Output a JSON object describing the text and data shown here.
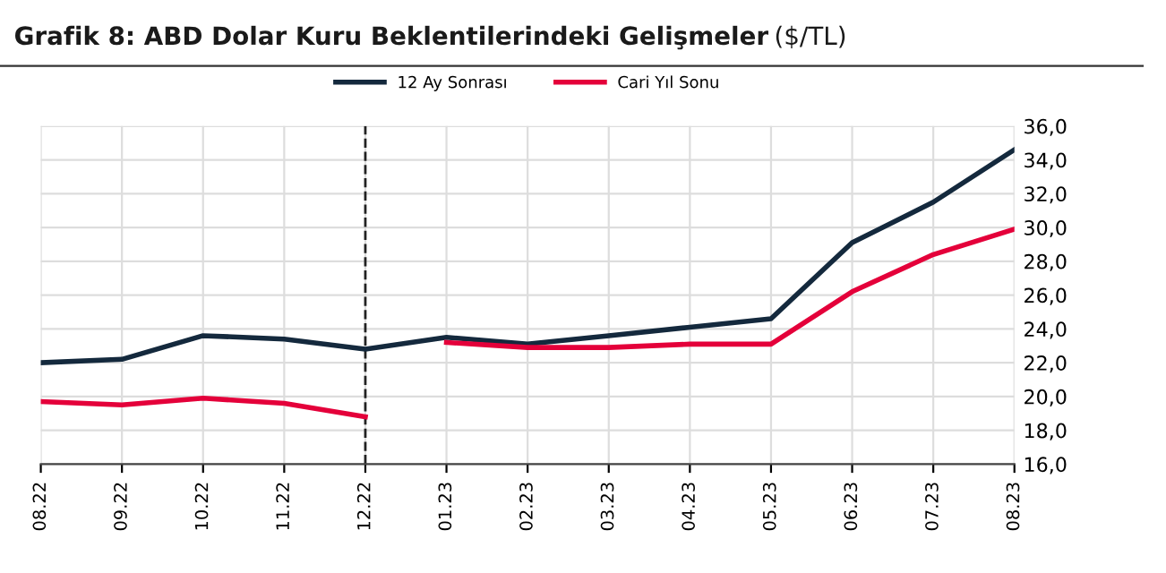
{
  "chart_data": {
    "type": "line",
    "title": "Grafik 8: ABD Dolar Kuru Beklentilerindeki Gelişmeler",
    "subtitle": "($/TL)",
    "categories": [
      "08.22",
      "09.22",
      "10.22",
      "11.22",
      "12.22",
      "01.23",
      "02.23",
      "03.23",
      "04.23",
      "05.23",
      "06.23",
      "07.23",
      "08.23"
    ],
    "series": [
      {
        "name": "12 Ay Sonrası",
        "color": "#14293d",
        "values": [
          22.0,
          22.2,
          23.6,
          23.4,
          22.8,
          23.5,
          23.1,
          23.6,
          24.1,
          24.6,
          29.1,
          31.5,
          34.6
        ]
      },
      {
        "name": "Cari Yıl Sonu",
        "color": "#e4003a",
        "values": [
          19.7,
          19.5,
          19.9,
          19.6,
          18.8,
          null,
          null,
          null,
          null,
          null,
          null,
          null,
          null
        ]
      },
      {
        "color": "#e4003a",
        "values": [
          null,
          null,
          null,
          null,
          null,
          23.2,
          22.9,
          22.9,
          23.1,
          23.1,
          26.2,
          28.4,
          29.9
        ]
      }
    ],
    "ylim": [
      16,
      36
    ],
    "yticks": [
      {
        "value": 16,
        "label": "16,0"
      },
      {
        "value": 18,
        "label": "18,0"
      },
      {
        "value": 20,
        "label": "20,0"
      },
      {
        "value": 22,
        "label": "22,0"
      },
      {
        "value": 24,
        "label": "24,0"
      },
      {
        "value": 26,
        "label": "26,0"
      },
      {
        "value": 28,
        "label": "28,0"
      },
      {
        "value": 30,
        "label": "30,0"
      },
      {
        "value": 32,
        "label": "32,0"
      },
      {
        "value": 34,
        "label": "34,0"
      },
      {
        "value": 36,
        "label": "36,0"
      }
    ],
    "ref_lines": [
      {
        "axis": "x",
        "value": "12.22",
        "color": "#222222",
        "line_style": "dashed"
      }
    ],
    "grid": true,
    "legend": "top",
    "marker": "none",
    "line_style": "solid"
  }
}
